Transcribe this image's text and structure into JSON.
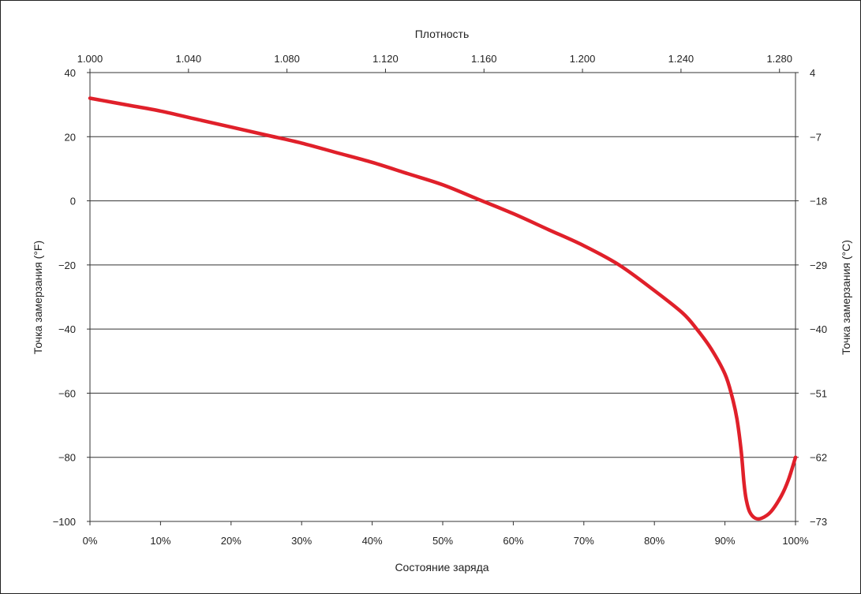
{
  "chart_data": {
    "type": "line",
    "title": "",
    "xlabel": "Состояние заряда",
    "x_top_label": "Плотность",
    "ylabel": "Точка замерзания (°F)",
    "y_right_label": "Точка замерзания (°C)",
    "xlim": [
      0,
      100
    ],
    "ylim": [
      -100,
      40
    ],
    "grid": "horizontal",
    "x_ticks": [
      0,
      10,
      20,
      30,
      40,
      50,
      60,
      70,
      80,
      90,
      100
    ],
    "x_tick_labels": [
      "0%",
      "10%",
      "20%",
      "30%",
      "40%",
      "50%",
      "60%",
      "70%",
      "80%",
      "90%",
      "100%"
    ],
    "top_ticks": [
      1.0,
      1.04,
      1.08,
      1.12,
      1.16,
      1.2,
      1.24,
      1.28
    ],
    "top_tick_labels": [
      "1.000",
      "1.040",
      "1.080",
      "1.120",
      "1.160",
      "1.200",
      "1.240",
      "1.280"
    ],
    "top_range": [
      1.0,
      1.2865
    ],
    "y_ticks": [
      40,
      20,
      0,
      -20,
      -40,
      -60,
      -80,
      -100
    ],
    "y_tick_labels": [
      "40",
      "20",
      "0",
      "−20",
      "−40",
      "−60",
      "−80",
      "−100"
    ],
    "y_right_tick_labels": [
      "4",
      "−7",
      "−18",
      "−29",
      "−40",
      "−51",
      "−62",
      "−73"
    ],
    "series": [
      {
        "color": "#e0202a",
        "x": [
          0,
          5,
          10,
          15,
          20,
          25,
          30,
          35,
          40,
          45,
          50,
          55,
          60,
          65,
          70,
          75,
          80,
          84,
          86,
          88,
          90,
          91,
          91.7,
          92.3,
          92.7,
          93.0,
          93.5,
          94.3,
          95.2,
          96.5,
          98,
          99,
          100
        ],
        "y": [
          32,
          30,
          28,
          25.5,
          23,
          20.5,
          18,
          15,
          12,
          8.5,
          5,
          0.5,
          -4,
          -9,
          -14,
          -20,
          -28,
          -35,
          -40,
          -46,
          -54,
          -61,
          -68,
          -78,
          -88,
          -93,
          -97,
          -99,
          -99,
          -97,
          -92,
          -87,
          -80
        ]
      }
    ]
  }
}
